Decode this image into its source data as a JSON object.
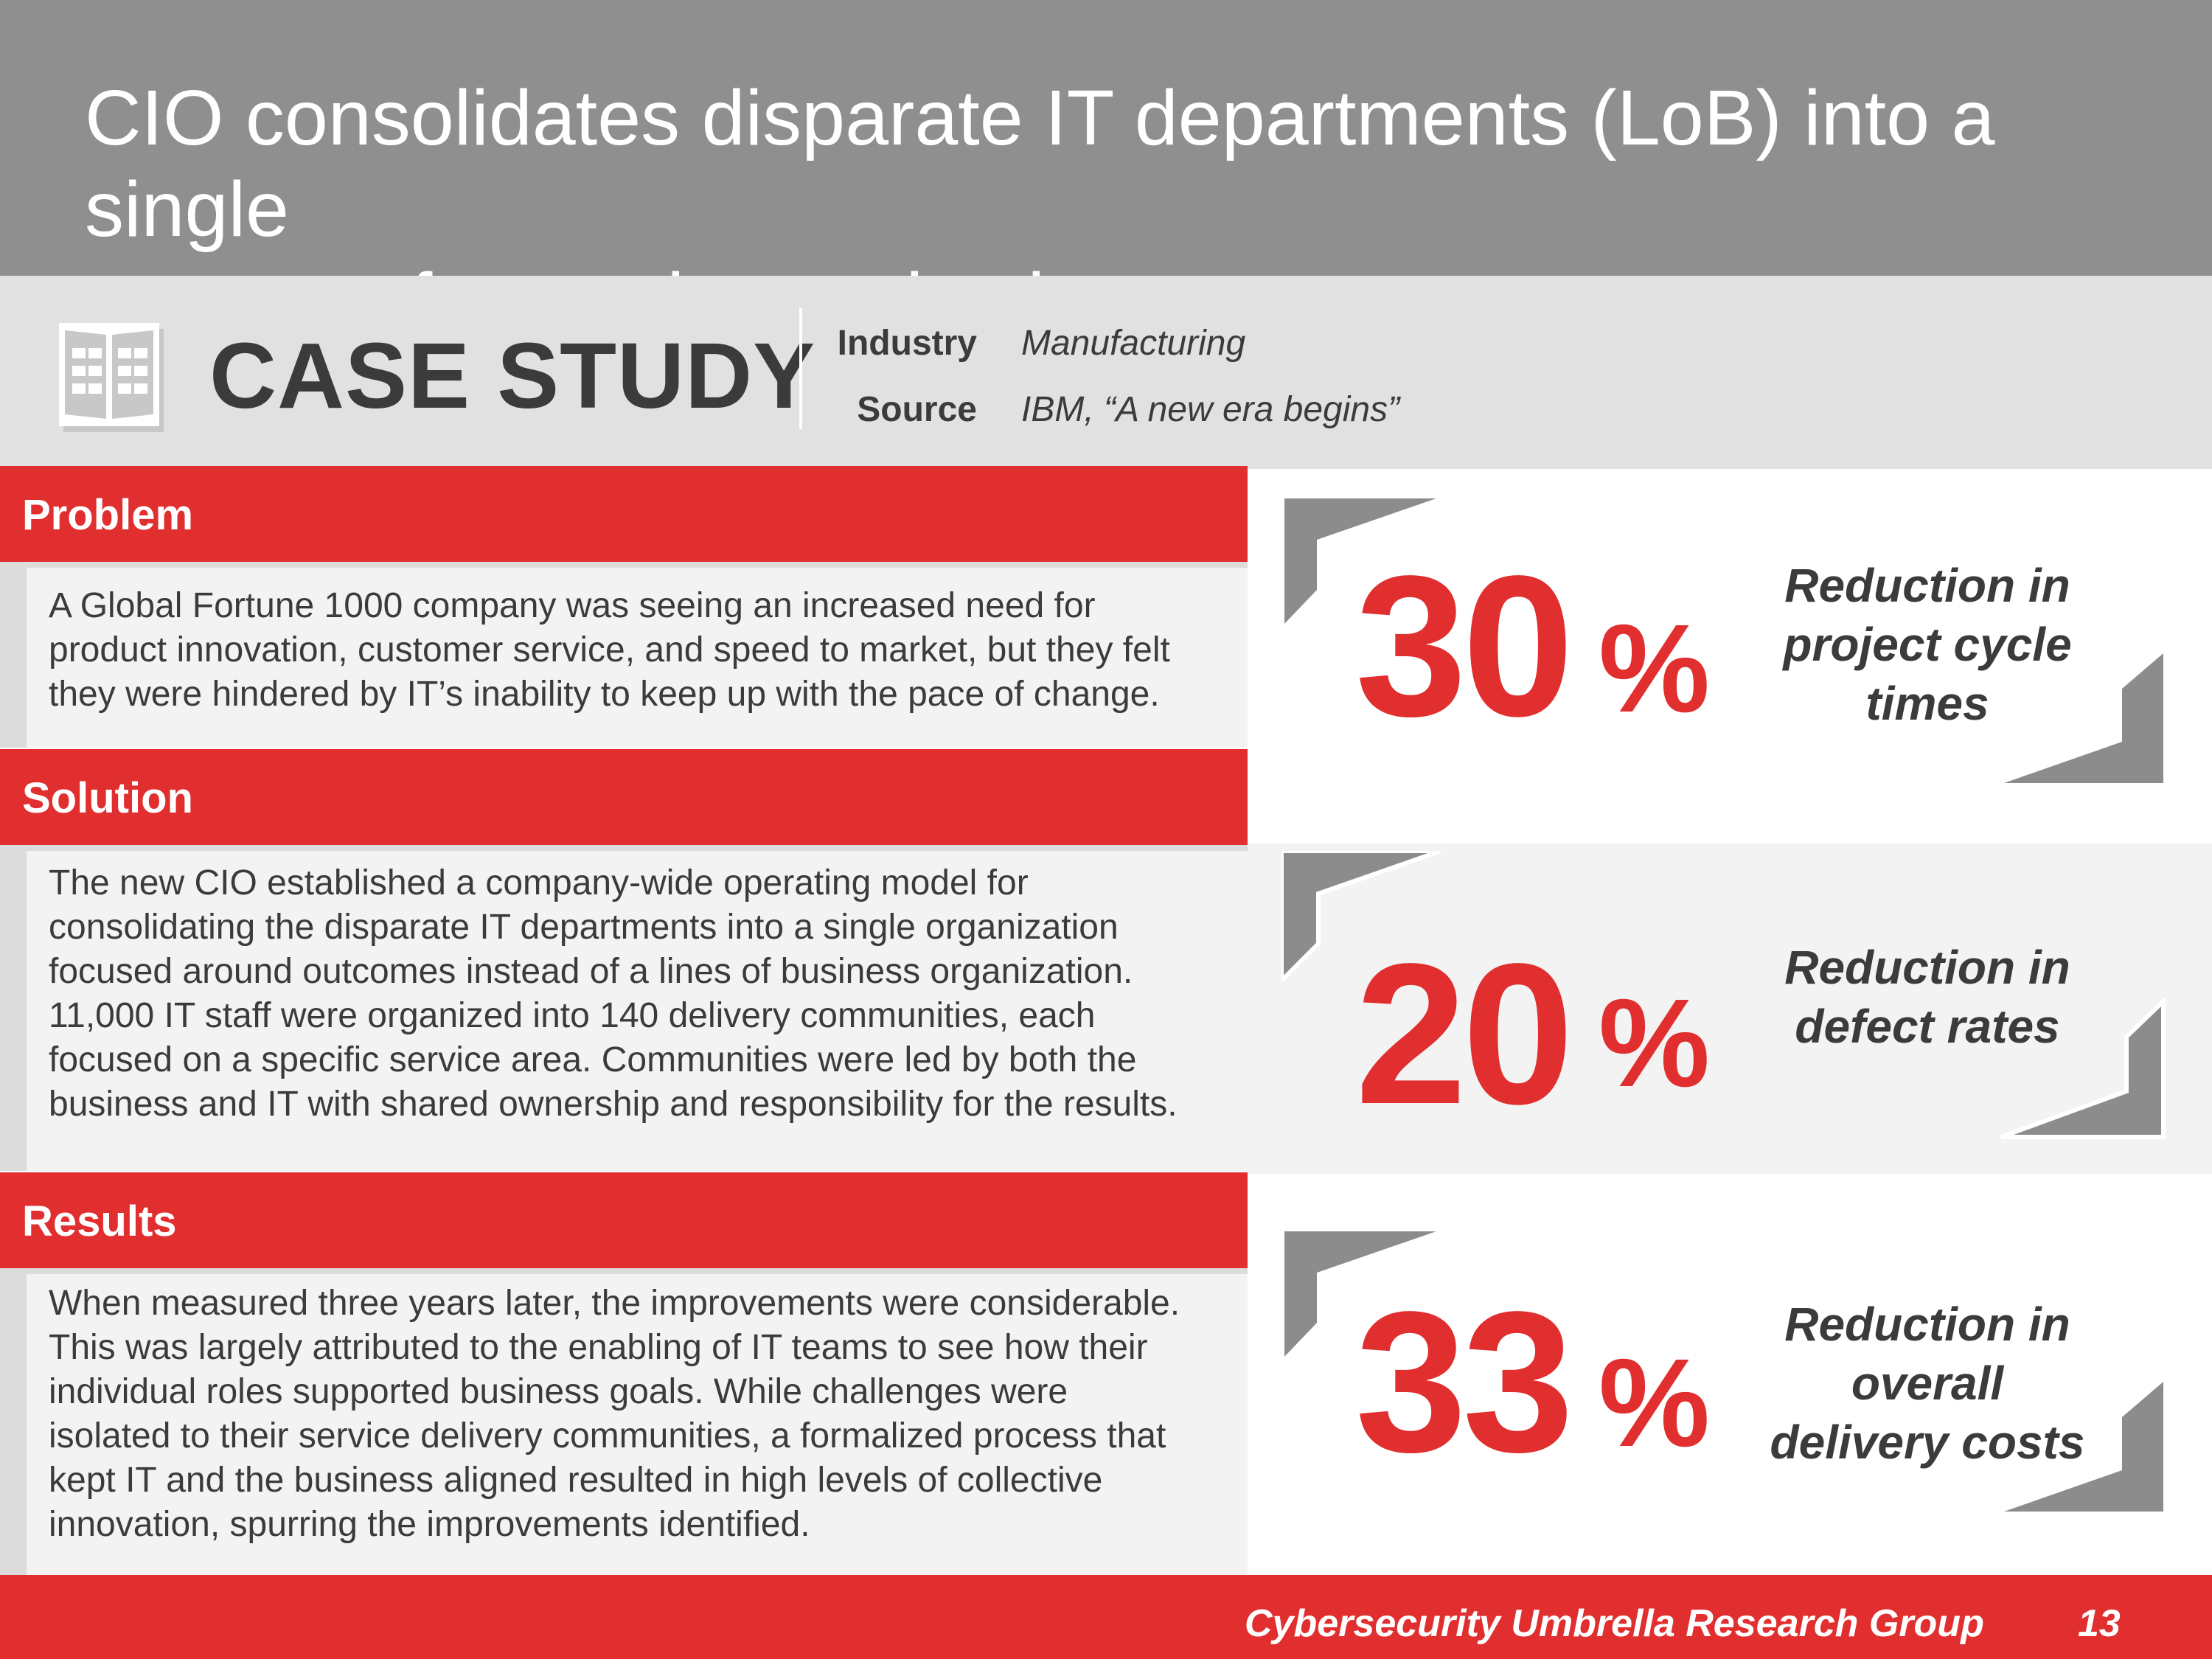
{
  "header": {
    "title_line1": "CIO consolidates disparate IT departments (LoB) into a single",
    "title_line2": "outcome-focused organization"
  },
  "case_study": {
    "icon": "book-icon",
    "title": "CASE STUDY",
    "industry_label": "Industry",
    "industry_value": "Manufacturing",
    "source_label": "Source",
    "source_value": "IBM, “A new era begins”"
  },
  "sections": [
    {
      "heading": "Problem",
      "lines": [
        "A Global Fortune 1000 company was seeing an increased need for",
        "product innovation, customer service, and speed to market, but they felt",
        "they were hindered by IT’s inability to keep up with the pace of change."
      ]
    },
    {
      "heading": "Solution",
      "lines": [
        "The new CIO established a company-wide operating model for",
        "consolidating the disparate IT departments into a single organization",
        "focused around outcomes instead of a lines of business organization.",
        "11,000 IT staff were organized into 140 delivery communities, each",
        "focused on a specific service area. Communities were led by both the",
        "business and IT with shared ownership and responsibility for the results."
      ]
    },
    {
      "heading": "Results",
      "lines": [
        "When measured three years later, the improvements were considerable.",
        "This was largely attributed to the enabling of IT teams to see how their",
        "individual roles supported business goals. While challenges were",
        "isolated to their service delivery communities, a formalized process that",
        "kept IT and the business aligned resulted in high levels of collective",
        "innovation, spurring the improvements identified."
      ]
    }
  ],
  "stats": [
    {
      "number": "30",
      "unit": "%",
      "label_lines": [
        "Reduction in",
        "project cycle",
        "times"
      ]
    },
    {
      "number": "20",
      "unit": "%",
      "label_lines": [
        "Reduction in",
        "defect rates"
      ]
    },
    {
      "number": "33",
      "unit": "%",
      "label_lines": [
        "Reduction in",
        "overall",
        "delivery costs"
      ]
    }
  ],
  "colors": {
    "accent_red": "#e12f30",
    "title_bar_gray": "#8f8f8f",
    "band_gray": "#e1e1e1",
    "text_dark": "#3b3b3b",
    "corner_gray": "#8c8c8c"
  },
  "footer": {
    "org": "Cybersecurity Umbrella Research Group",
    "page_number": "13"
  }
}
